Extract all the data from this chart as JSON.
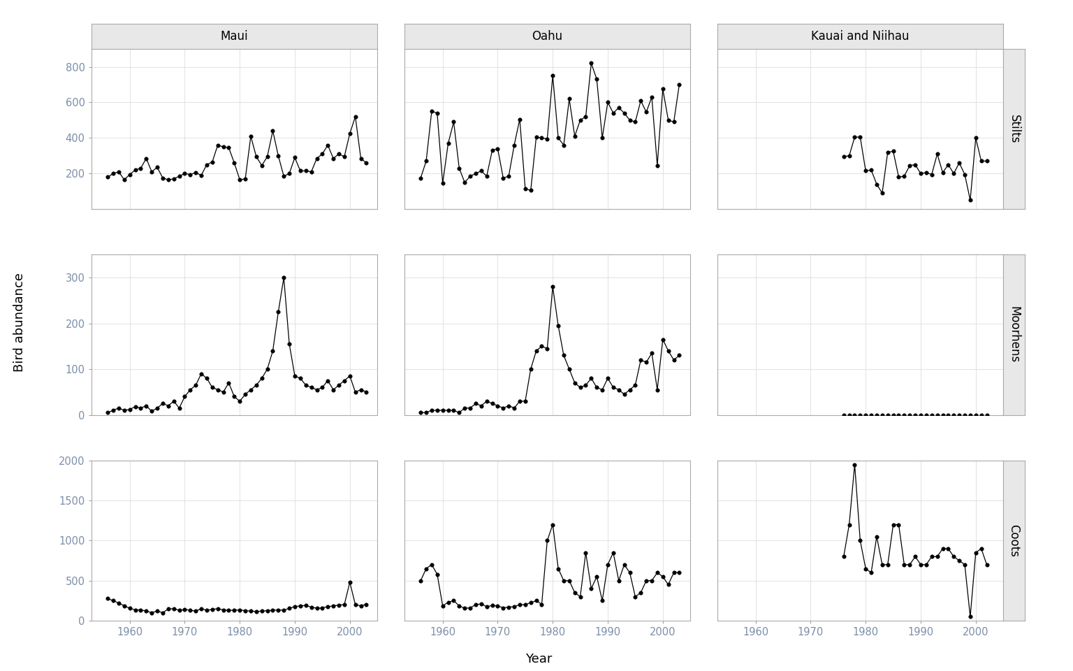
{
  "islands": [
    "Maui",
    "Oahu",
    "Kauai and Niihau"
  ],
  "species": [
    "Stilts",
    "Moorhens",
    "Coots"
  ],
  "ylabel": "Bird abundance",
  "xlabel": "Year",
  "bg_color": "#ffffff",
  "panel_bg": "#ffffff",
  "strip_bg": "#e8e8e8",
  "tick_label_color": "#7B8FA8",
  "axis_label_color": "#555555",
  "grid_color": "#dddddd",
  "spine_color": "#888888",
  "data": {
    "Stilts": {
      "Maui": {
        "years": [
          1956,
          1957,
          1958,
          1959,
          1960,
          1961,
          1962,
          1963,
          1964,
          1965,
          1966,
          1967,
          1968,
          1969,
          1970,
          1971,
          1972,
          1973,
          1974,
          1975,
          1976,
          1977,
          1978,
          1979,
          1980,
          1981,
          1982,
          1983,
          1984,
          1985,
          1986,
          1987,
          1988,
          1989,
          1990,
          1991,
          1992,
          1993,
          1994,
          1995,
          1996,
          1997,
          1998,
          1999,
          2000,
          2001,
          2002,
          2003
        ],
        "values": [
          180,
          200,
          210,
          165,
          195,
          220,
          230,
          285,
          210,
          235,
          175,
          165,
          170,
          185,
          200,
          195,
          205,
          190,
          250,
          265,
          360,
          350,
          345,
          260,
          165,
          170,
          410,
          295,
          245,
          295,
          440,
          300,
          185,
          200,
          290,
          215,
          215,
          210,
          285,
          310,
          360,
          285,
          310,
          295,
          425,
          520,
          285,
          260
        ]
      },
      "Oahu": {
        "years": [
          1956,
          1957,
          1958,
          1959,
          1960,
          1961,
          1962,
          1963,
          1964,
          1965,
          1966,
          1967,
          1968,
          1969,
          1970,
          1971,
          1972,
          1973,
          1974,
          1975,
          1976,
          1977,
          1978,
          1979,
          1980,
          1981,
          1982,
          1983,
          1984,
          1985,
          1986,
          1987,
          1988,
          1989,
          1990,
          1991,
          1992,
          1993,
          1994,
          1995,
          1996,
          1997,
          1998,
          1999,
          2000,
          2001,
          2002,
          2003
        ],
        "values": [
          175,
          270,
          550,
          540,
          145,
          370,
          490,
          230,
          150,
          185,
          200,
          215,
          185,
          330,
          340,
          175,
          185,
          360,
          505,
          115,
          105,
          405,
          400,
          395,
          750,
          400,
          360,
          620,
          410,
          500,
          520,
          820,
          730,
          400,
          600,
          540,
          570,
          540,
          500,
          490,
          610,
          545,
          630,
          245,
          675,
          500,
          490,
          700
        ]
      },
      "Kauai and Niihau": {
        "years": [
          1976,
          1977,
          1978,
          1979,
          1980,
          1981,
          1982,
          1983,
          1984,
          1985,
          1986,
          1987,
          1988,
          1989,
          1990,
          1991,
          1992,
          1993,
          1994,
          1995,
          1996,
          1997,
          1998,
          1999,
          2000,
          2001,
          2002
        ],
        "values": [
          295,
          300,
          405,
          405,
          215,
          220,
          140,
          90,
          320,
          325,
          180,
          185,
          245,
          250,
          200,
          205,
          195,
          310,
          205,
          250,
          200,
          260,
          195,
          50,
          400,
          270,
          270
        ]
      }
    },
    "Moorhens": {
      "Maui": {
        "years": [
          1956,
          1957,
          1958,
          1959,
          1960,
          1961,
          1962,
          1963,
          1964,
          1965,
          1966,
          1967,
          1968,
          1969,
          1970,
          1971,
          1972,
          1973,
          1974,
          1975,
          1976,
          1977,
          1978,
          1979,
          1980,
          1981,
          1982,
          1983,
          1984,
          1985,
          1986,
          1987,
          1988,
          1989,
          1990,
          1991,
          1992,
          1993,
          1994,
          1995,
          1996,
          1997,
          1998,
          1999,
          2000,
          2001,
          2002,
          2003
        ],
        "values": [
          5,
          10,
          15,
          10,
          12,
          18,
          15,
          20,
          8,
          15,
          25,
          20,
          30,
          15,
          40,
          55,
          65,
          90,
          80,
          60,
          55,
          50,
          70,
          40,
          30,
          45,
          55,
          65,
          80,
          100,
          140,
          225,
          300,
          155,
          85,
          80,
          65,
          60,
          55,
          60,
          75,
          55,
          65,
          75,
          85,
          50,
          55,
          50
        ]
      },
      "Oahu": {
        "years": [
          1956,
          1957,
          1958,
          1959,
          1960,
          1961,
          1962,
          1963,
          1964,
          1965,
          1966,
          1967,
          1968,
          1969,
          1970,
          1971,
          1972,
          1973,
          1974,
          1975,
          1976,
          1977,
          1978,
          1979,
          1980,
          1981,
          1982,
          1983,
          1984,
          1985,
          1986,
          1987,
          1988,
          1989,
          1990,
          1991,
          1992,
          1993,
          1994,
          1995,
          1996,
          1997,
          1998,
          1999,
          2000,
          2001,
          2002,
          2003
        ],
        "values": [
          5,
          5,
          10,
          10,
          10,
          10,
          10,
          5,
          15,
          15,
          25,
          20,
          30,
          25,
          20,
          15,
          20,
          15,
          30,
          30,
          100,
          140,
          150,
          145,
          280,
          195,
          130,
          100,
          70,
          60,
          65,
          80,
          60,
          55,
          80,
          60,
          55,
          45,
          55,
          65,
          120,
          115,
          135,
          55,
          165,
          140,
          120,
          130
        ]
      },
      "Kauai and Niihau": {
        "years": [
          1976,
          1977,
          1978,
          1979,
          1980,
          1981,
          1982,
          1983,
          1984,
          1985,
          1986,
          1987,
          1988,
          1989,
          1990,
          1991,
          1992,
          1993,
          1994,
          1995,
          1996,
          1997,
          1998,
          1999,
          2000,
          2001,
          2002
        ],
        "values": [
          0,
          0,
          0,
          0,
          0,
          0,
          0,
          0,
          0,
          0,
          0,
          0,
          0,
          0,
          0,
          0,
          0,
          0,
          0,
          0,
          0,
          0,
          0,
          0,
          0,
          0,
          0
        ]
      }
    },
    "Coots": {
      "Maui": {
        "years": [
          1956,
          1957,
          1958,
          1959,
          1960,
          1961,
          1962,
          1963,
          1964,
          1965,
          1966,
          1967,
          1968,
          1969,
          1970,
          1971,
          1972,
          1973,
          1974,
          1975,
          1976,
          1977,
          1978,
          1979,
          1980,
          1981,
          1982,
          1983,
          1984,
          1985,
          1986,
          1987,
          1988,
          1989,
          1990,
          1991,
          1992,
          1993,
          1994,
          1995,
          1996,
          1997,
          1998,
          1999,
          2000,
          2001,
          2002,
          2003
        ],
        "values": [
          275,
          250,
          220,
          185,
          155,
          135,
          135,
          120,
          100,
          120,
          100,
          145,
          150,
          130,
          140,
          130,
          120,
          150,
          130,
          140,
          150,
          135,
          130,
          130,
          135,
          125,
          120,
          115,
          120,
          125,
          130,
          135,
          130,
          155,
          175,
          185,
          190,
          170,
          155,
          160,
          175,
          185,
          195,
          200,
          480,
          200,
          185,
          205
        ]
      },
      "Oahu": {
        "years": [
          1956,
          1957,
          1958,
          1959,
          1960,
          1961,
          1962,
          1963,
          1964,
          1965,
          1966,
          1967,
          1968,
          1969,
          1970,
          1971,
          1972,
          1973,
          1974,
          1975,
          1976,
          1977,
          1978,
          1979,
          1980,
          1981,
          1982,
          1983,
          1984,
          1985,
          1986,
          1987,
          1988,
          1989,
          1990,
          1991,
          1992,
          1993,
          1994,
          1995,
          1996,
          1997,
          1998,
          1999,
          2000,
          2001,
          2002,
          2003
        ],
        "values": [
          500,
          650,
          700,
          580,
          185,
          230,
          250,
          185,
          155,
          160,
          200,
          210,
          175,
          190,
          185,
          160,
          170,
          175,
          200,
          200,
          225,
          250,
          205,
          1000,
          1200,
          650,
          500,
          500,
          350,
          300,
          850,
          400,
          550,
          250,
          700,
          850,
          500,
          700,
          600,
          300,
          350,
          500,
          500,
          600,
          550,
          450,
          600,
          600
        ]
      },
      "Kauai and Niihau": {
        "years": [
          1976,
          1977,
          1978,
          1979,
          1980,
          1981,
          1982,
          1983,
          1984,
          1985,
          1986,
          1987,
          1988,
          1989,
          1990,
          1991,
          1992,
          1993,
          1994,
          1995,
          1996,
          1997,
          1998,
          1999,
          2000,
          2001,
          2002
        ],
        "values": [
          800,
          1200,
          1950,
          1000,
          650,
          600,
          1050,
          700,
          700,
          1200,
          1200,
          700,
          700,
          800,
          700,
          700,
          800,
          800,
          900,
          900,
          800,
          750,
          700,
          50,
          850,
          900,
          700
        ]
      }
    }
  },
  "ylims": {
    "Stilts": [
      0,
      900
    ],
    "Moorhens": [
      0,
      350
    ],
    "Coots": [
      0,
      2000
    ]
  },
  "yticks": {
    "Stilts": [
      200,
      400,
      600,
      800
    ],
    "Moorhens": [
      0,
      100,
      200,
      300
    ],
    "Coots": [
      0,
      500,
      1000,
      1500,
      2000
    ]
  },
  "xticks": [
    1960,
    1970,
    1980,
    1990,
    2000
  ],
  "xlim": [
    1953,
    2005
  ]
}
